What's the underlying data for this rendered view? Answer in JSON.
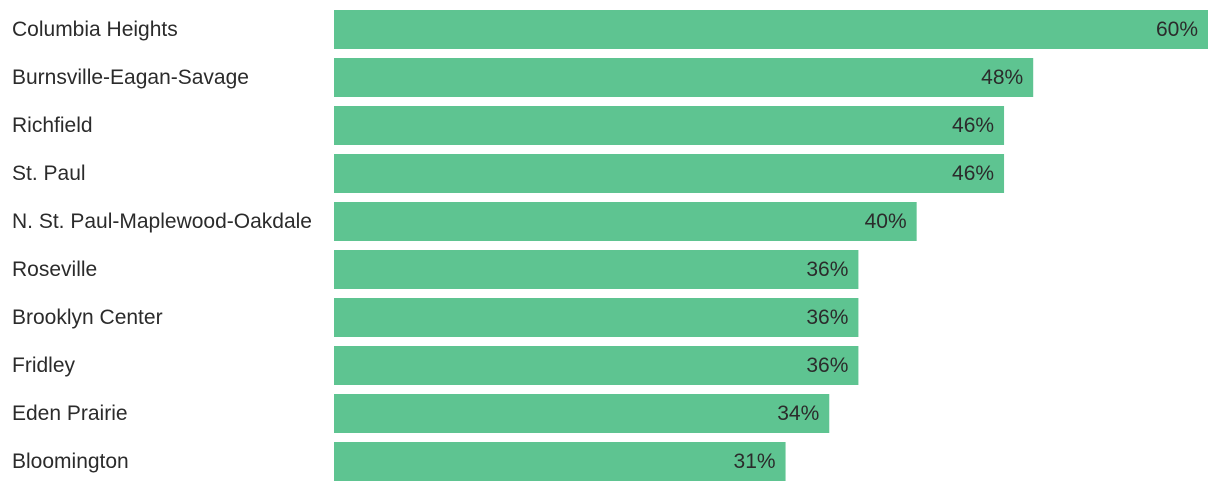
{
  "chart_data": {
    "type": "bar",
    "orientation": "horizontal",
    "categories": [
      "Columbia Heights",
      "Burnsville-Eagan-Savage",
      "Richfield",
      "St. Paul",
      "N. St. Paul-Maplewood-Oakdale",
      "Roseville",
      "Brooklyn Center",
      "Fridley",
      "Eden Prairie",
      "Bloomington"
    ],
    "values": [
      60,
      48,
      46,
      46,
      40,
      36,
      36,
      36,
      34,
      31
    ],
    "value_labels": [
      "60%",
      "48%",
      "46%",
      "46%",
      "40%",
      "36%",
      "36%",
      "36%",
      "34%",
      "31%"
    ],
    "xlim": [
      0,
      60
    ],
    "grid": false,
    "bar_color": "#5ec491",
    "text_color": "#2b2b2b"
  }
}
